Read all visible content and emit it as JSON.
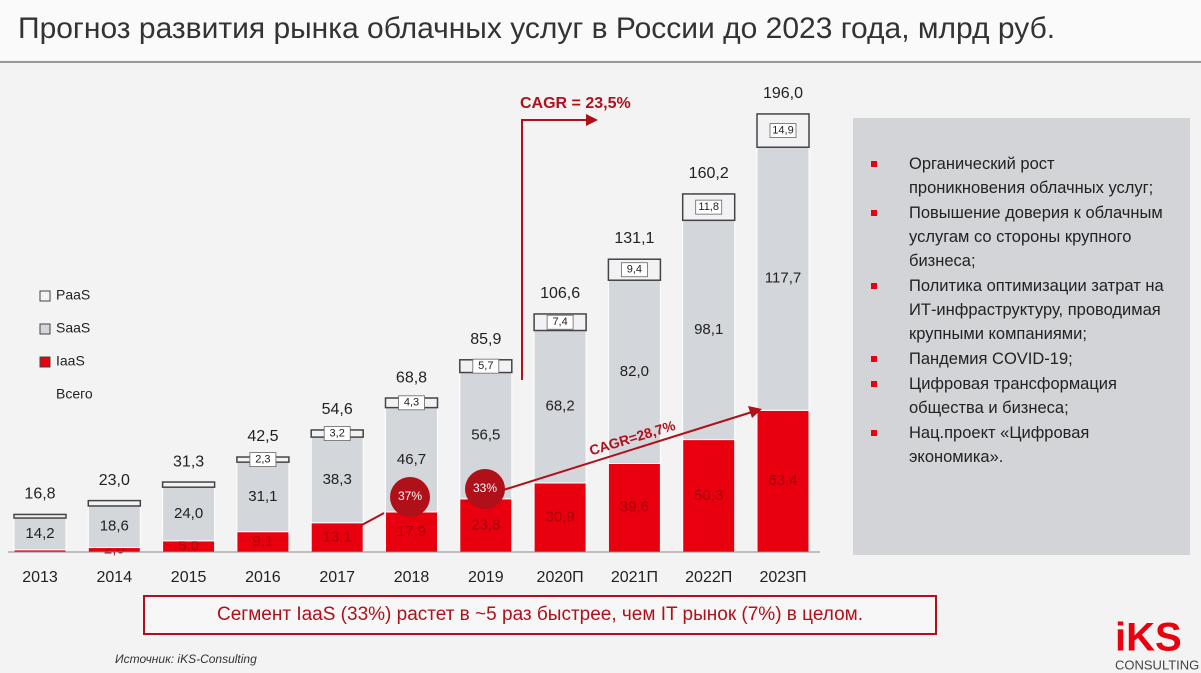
{
  "title": "Прогноз развития рынка облачных услуг в России до 2023 года, млрд руб.",
  "chart_data": {
    "type": "bar",
    "stacked": true,
    "categories": [
      "2013",
      "2014",
      "2015",
      "2016",
      "2017",
      "2018",
      "2019",
      "2020П",
      "2021П",
      "2022П",
      "2023П"
    ],
    "ylim": [
      0,
      200
    ],
    "series": [
      {
        "name": "IaaS",
        "color": "#e8000f",
        "values": [
          1.0,
          2.0,
          5.0,
          9.1,
          13.1,
          17.9,
          23.8,
          30.9,
          39.6,
          50.3,
          63.4
        ],
        "value_labels": [
          null,
          "2,0",
          "5,0",
          "9,1",
          "13,1",
          "17,9",
          "23,8",
          "30,9",
          "39,6",
          "50,3",
          "63,4"
        ]
      },
      {
        "name": "SaaS",
        "color": "#d3d6da",
        "values": [
          14.2,
          18.6,
          24.0,
          31.1,
          38.3,
          46.7,
          56.5,
          68.2,
          82.0,
          98.1,
          117.7
        ],
        "value_labels": [
          "14,2",
          "18,6",
          "24,0",
          "31,1",
          "38,3",
          "46,7",
          "56,5",
          "68,2",
          "82,0",
          "98,1",
          "117,7"
        ]
      },
      {
        "name": "PaaS",
        "color": "#f2f2f4",
        "values": [
          1.6,
          2.4,
          2.3,
          2.3,
          3.2,
          4.3,
          5.7,
          7.4,
          9.4,
          11.8,
          14.9
        ],
        "value_labels": [
          null,
          null,
          null,
          "2,3",
          "3,2",
          "4,3",
          "5,7",
          "7,4",
          "9,4",
          "11,8",
          "14,9"
        ]
      }
    ],
    "totals": {
      "name": "Всего",
      "values": [
        16.8,
        23.0,
        31.3,
        42.5,
        54.6,
        68.8,
        85.9,
        106.6,
        131.1,
        160.2,
        196.0
      ],
      "value_labels": [
        "16,8",
        "23,0",
        "31,3",
        "42,5",
        "54,6",
        "68,8",
        "85,9",
        "106,6",
        "131,1",
        "160,2",
        "196,0"
      ]
    },
    "annotations": [
      "CAGR = 23,5%",
      "CAGR=28,7%",
      "37%",
      "33%"
    ]
  },
  "drivers": [
    "Органический рост проникновения облачных услуг;",
    "Повышение доверия к облачным услугам со стороны крупного бизнеса;",
    "Политика оптимизации затрат на ИТ-инфраструктуру, проводимая крупными компаниями;",
    "Пандемия COVID-19;",
    "Цифровая трансформация общества и бизнеса;",
    "Нац.проект «Цифровая экономика»."
  ],
  "note": "Сегмент IaaS (33%) растет в ~5 раз быстрее, чем IT рынок (7%) в целом.",
  "source": "Источник: iKS-Consulting",
  "logo": {
    "name": "iKS",
    "sub": "CONSULTING"
  }
}
